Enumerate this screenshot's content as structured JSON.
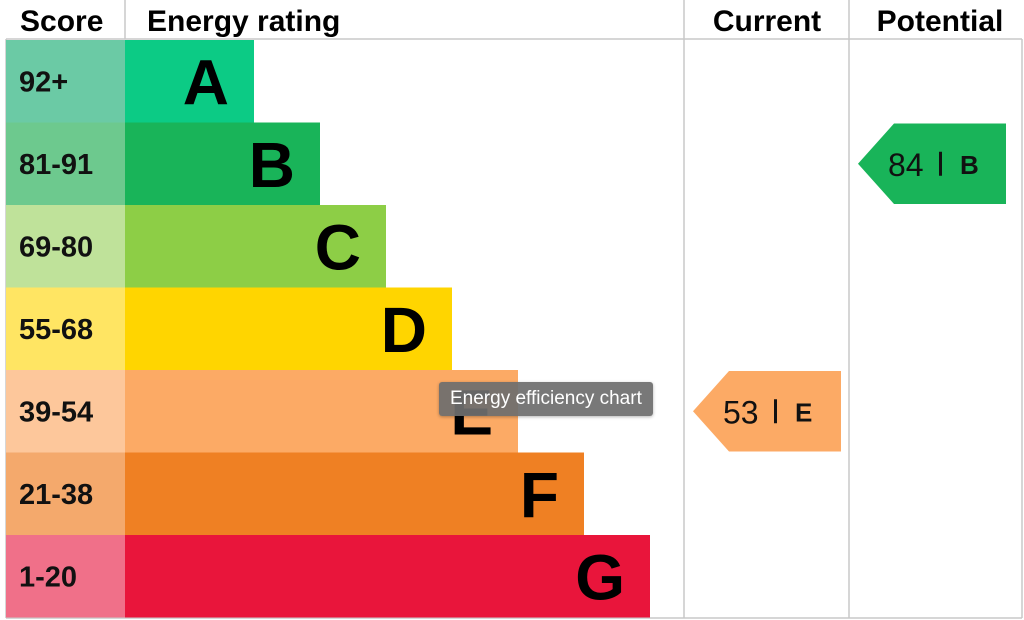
{
  "chart_data": {
    "type": "bar",
    "headers": {
      "score": "Score",
      "energy_rating": "Energy rating",
      "current": "Current",
      "potential": "Potential"
    },
    "bands": [
      {
        "letter": "A",
        "range": "92+",
        "color": "#0ccb85",
        "score_color": "#6bcaa5"
      },
      {
        "letter": "B",
        "range": "81-91",
        "color": "#19b459",
        "score_color": "#6dc98e"
      },
      {
        "letter": "C",
        "range": "69-80",
        "color": "#8dce46",
        "score_color": "#bfe29a"
      },
      {
        "letter": "D",
        "range": "55-68",
        "color": "#ffd500",
        "score_color": "#ffe563"
      },
      {
        "letter": "E",
        "range": "39-54",
        "color": "#fcaa65",
        "score_color": "#fdc79b"
      },
      {
        "letter": "F",
        "range": "21-38",
        "color": "#ef8023",
        "score_color": "#f4a96c"
      },
      {
        "letter": "G",
        "range": "1-20",
        "color": "#e9153b",
        "score_color": "#f07089"
      }
    ],
    "current": {
      "value": 53,
      "rating": "E",
      "color": "#fcaa65"
    },
    "potential": {
      "value": 84,
      "rating": "B",
      "color": "#19b459"
    }
  },
  "tooltip": {
    "text": "Energy efficiency chart"
  }
}
